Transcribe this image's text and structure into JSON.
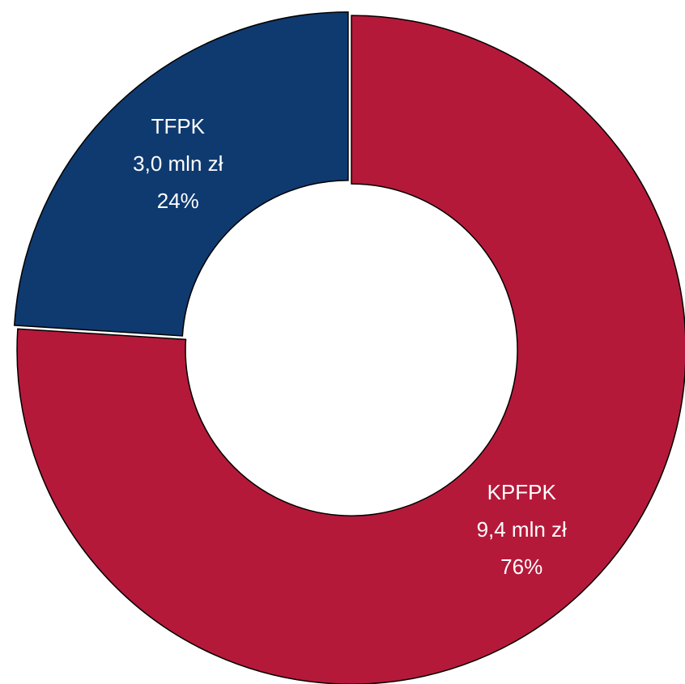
{
  "chart_data": {
    "type": "donut",
    "categories": [
      "KPFPK",
      "TFPK"
    ],
    "values": [
      76,
      24
    ],
    "value_labels": [
      "76%",
      "24%"
    ],
    "amount_labels": [
      "9,4 mln zł",
      "3,0 mln zł"
    ],
    "colors": [
      "#b5193a",
      "#0e3a70"
    ]
  }
}
